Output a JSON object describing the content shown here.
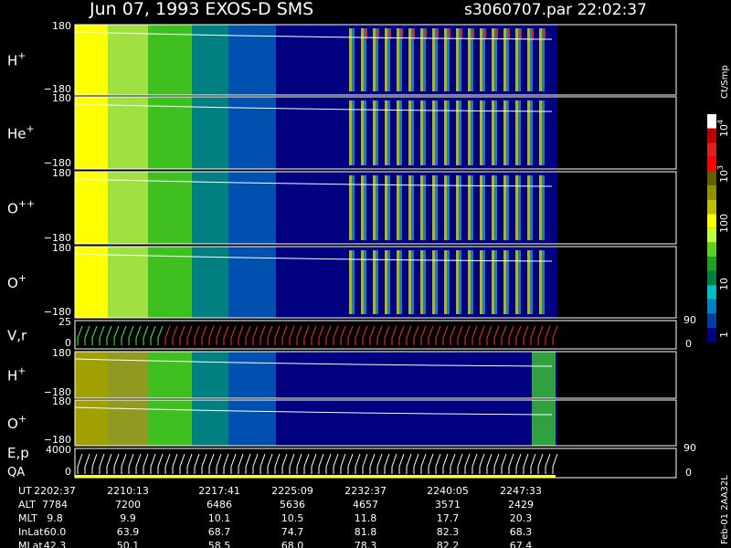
{
  "header": {
    "title": "Jun 07, 1993   EXOS-D SMS",
    "file": "s3060707.par  22:02:37"
  },
  "panels": [
    {
      "label": "H",
      "sup": "+",
      "ticks": [
        "180",
        "−180"
      ]
    },
    {
      "label": "He",
      "sup": "+",
      "ticks": [
        "180",
        "−180"
      ]
    },
    {
      "label": "O",
      "sup": "++",
      "ticks": [
        "180",
        "−180"
      ]
    },
    {
      "label": "O",
      "sup": "+",
      "ticks": [
        "180",
        "−180"
      ]
    },
    {
      "label": "V,r",
      "sup": "",
      "ticks": [
        "25",
        "0"
      ],
      "right_ticks": [
        "90",
        "0"
      ]
    },
    {
      "label": "H",
      "sup": "+",
      "ticks": [
        "180",
        "−180"
      ]
    },
    {
      "label": "O",
      "sup": "+",
      "ticks": [
        "180",
        "−180"
      ]
    },
    {
      "label": "E,p",
      "label2": "QA",
      "sup": "",
      "ticks": [
        "4000",
        "0"
      ],
      "right_ticks": [
        "90",
        "0"
      ]
    }
  ],
  "colorbar": {
    "unit": "Ct/Smp",
    "labels": [
      {
        "base": "10",
        "exp": "4"
      },
      {
        "base": "10",
        "exp": "3"
      },
      {
        "base": "100",
        "exp": ""
      },
      {
        "base": "10",
        "exp": ""
      },
      {
        "base": "1",
        "exp": ""
      }
    ]
  },
  "table": {
    "row_labels": [
      "UT",
      "ALT",
      "MLT",
      "InLat",
      "MLat"
    ],
    "rows": [
      [
        "2202:37",
        "2210:13",
        "2217:41",
        "2225:09",
        "2232:37",
        "2240:05",
        "2247:33"
      ],
      [
        "7784",
        "7200",
        "6486",
        "5636",
        "4657",
        "3571",
        "2429"
      ],
      [
        "9.8",
        "9.9",
        "10.1",
        "10.5",
        "11.8",
        "17.7",
        "20.3"
      ],
      [
        "60.0",
        "63.9",
        "68.7",
        "74.7",
        "81.8",
        "82.3",
        "68.3"
      ],
      [
        "42.3",
        "50.1",
        "58.5",
        "68.0",
        "78.3",
        "82.2",
        "67.4"
      ]
    ]
  },
  "footer": "Feb-01 2AA32L"
}
